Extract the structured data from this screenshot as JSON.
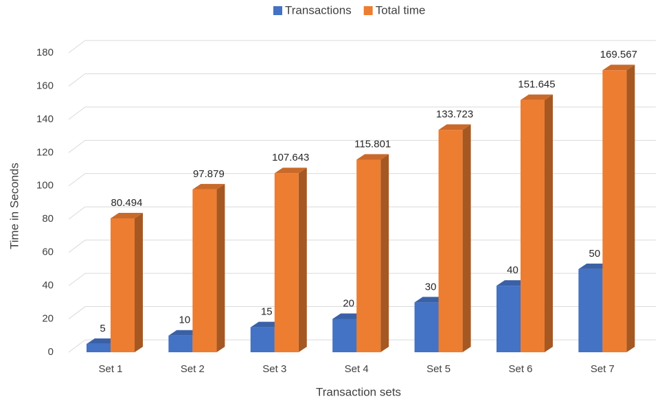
{
  "chart_data": {
    "type": "bar3d",
    "y_label": "Time in Seconds",
    "x_label": "Transaction sets",
    "categories": [
      "Set 1",
      "Set 2",
      "Set 3",
      "Set 4",
      "Set 5",
      "Set 6",
      "Set 7"
    ],
    "series": [
      {
        "name": "Transactions",
        "color": "#4472c4",
        "values": [
          5,
          10,
          15,
          20,
          30,
          40,
          50
        ]
      },
      {
        "name": "Total time",
        "color": "#ed7d31",
        "values": [
          80.494,
          97.879,
          107.643,
          115.801,
          133.723,
          151.645,
          169.567
        ]
      }
    ],
    "ylim": [
      0,
      180
    ],
    "yticks": [
      0,
      20,
      40,
      60,
      80,
      100,
      120,
      140,
      160,
      180
    ],
    "grid": true,
    "legend": "top"
  }
}
